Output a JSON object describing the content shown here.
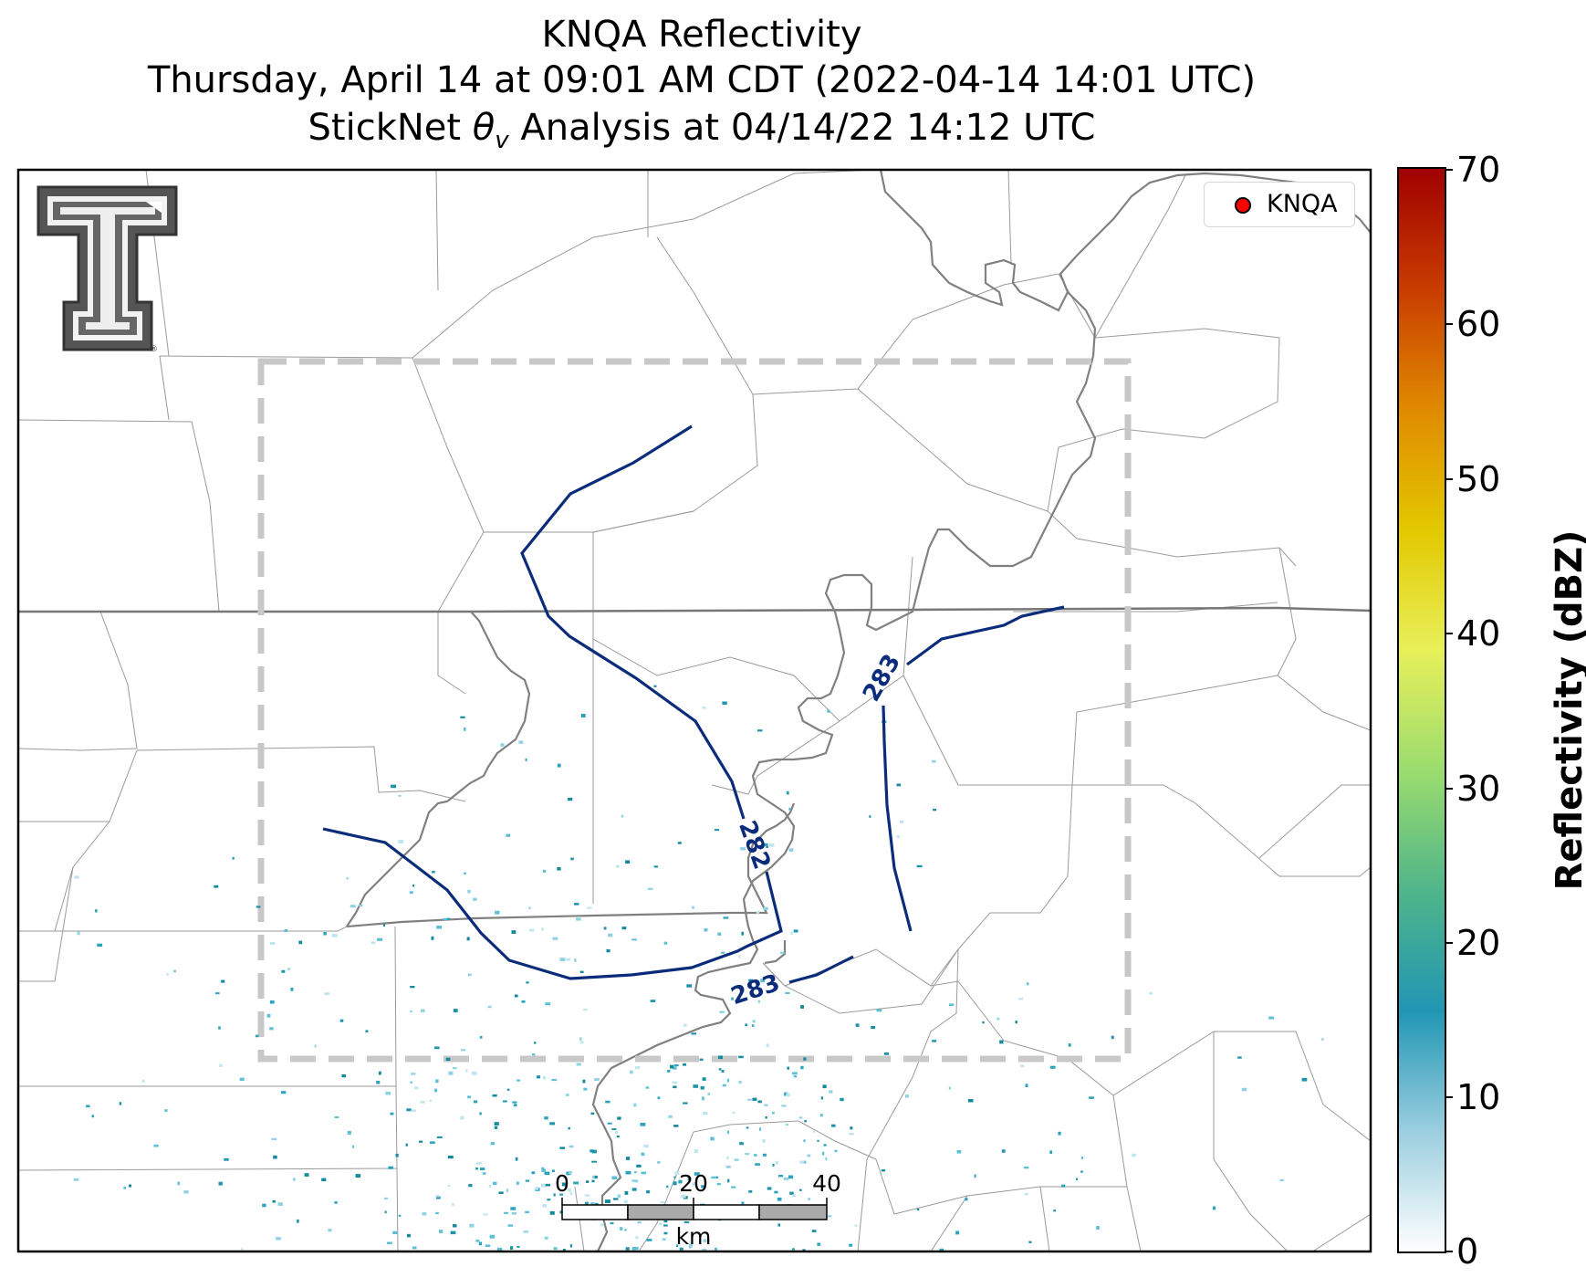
{
  "title": {
    "line1": "KNQA Reflectivity",
    "line2": "Thursday, April 14 at 09:01 AM CDT (2022-04-14 14:01 UTC)",
    "line3_prefix": "StickNet ",
    "line3_symbol": "θ",
    "line3_subscript": "v",
    "line3_suffix": " Analysis at 04/14/22 14:12 UTC"
  },
  "legend": {
    "label": "KNQA",
    "marker_color": "#ff0000"
  },
  "colorbar": {
    "label": "Reflectivity (dBZ)",
    "ticks": [
      "70",
      "60",
      "50",
      "40",
      "30",
      "20",
      "10",
      "0"
    ],
    "min": 0,
    "max": 70,
    "colors": [
      "#ffffff",
      "#9ccfe0",
      "#2196b4",
      "#4fb58a",
      "#9bdc6e",
      "#e8f05a",
      "#e2c800",
      "#e08a00",
      "#c83c00",
      "#a00000"
    ]
  },
  "contours": [
    {
      "label": "282",
      "color": "#0b2c7a"
    },
    {
      "label": "283",
      "color": "#0b2c7a"
    },
    {
      "label": "283",
      "color": "#0b2c7a"
    }
  ],
  "scale_bar": {
    "ticks": [
      "0",
      "20",
      "40"
    ],
    "unit": "km"
  },
  "logo": {
    "name": "Texas Tech Double T"
  }
}
